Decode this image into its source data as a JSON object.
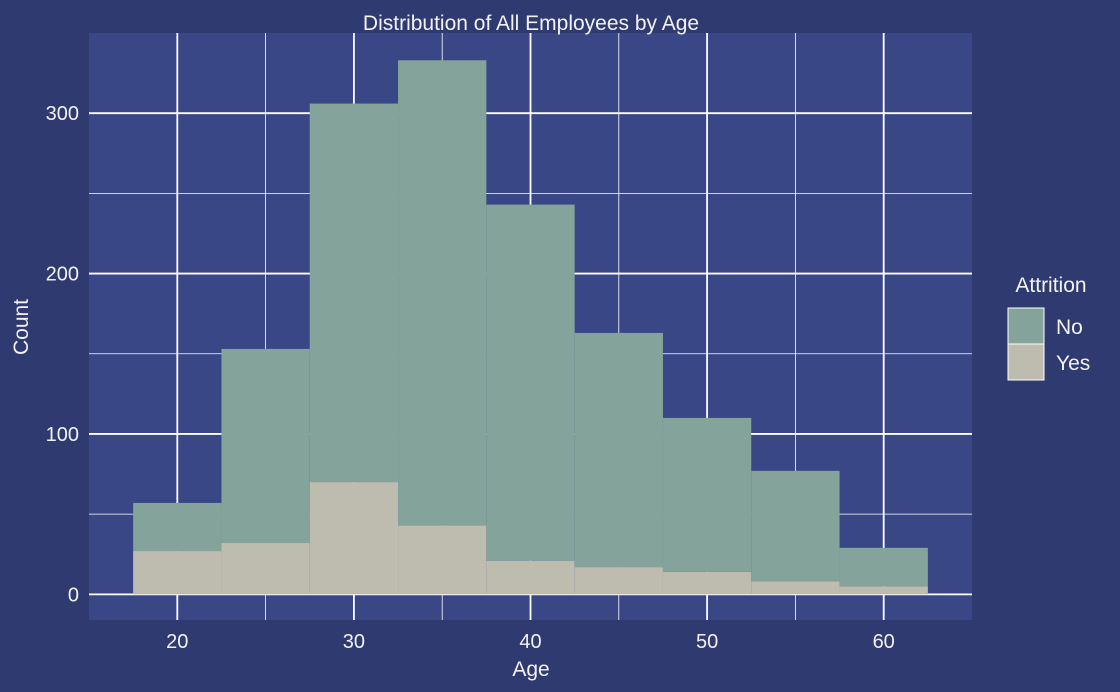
{
  "chart_data": {
    "type": "bar",
    "title": "Distribution of All Employees by Age",
    "xlabel": "Age",
    "ylabel": "Count",
    "xlim": [
      15,
      65
    ],
    "ylim": [
      -16,
      350
    ],
    "xticks": [
      20,
      30,
      40,
      50,
      60
    ],
    "yticks": [
      0,
      100,
      200,
      300
    ],
    "grid": true,
    "stacked": true,
    "legend": {
      "title": "Attrition",
      "placement": "right",
      "entries": [
        "No",
        "Yes"
      ]
    },
    "bins": [
      {
        "x0": 17.5,
        "x1": 22.5
      },
      {
        "x0": 22.5,
        "x1": 27.5
      },
      {
        "x0": 27.5,
        "x1": 32.5
      },
      {
        "x0": 32.5,
        "x1": 37.5
      },
      {
        "x0": 37.5,
        "x1": 42.5
      },
      {
        "x0": 42.5,
        "x1": 47.5
      },
      {
        "x0": 47.5,
        "x1": 52.5
      },
      {
        "x0": 52.5,
        "x1": 57.5
      },
      {
        "x0": 57.5,
        "x1": 62.5
      }
    ],
    "series": [
      {
        "name": "Yes",
        "color": "#bdbcaf",
        "values": [
          27,
          32,
          70,
          43,
          21,
          17,
          14,
          8,
          5
        ]
      },
      {
        "name": "No",
        "color": "#84a39b",
        "values": [
          30,
          121,
          236,
          290,
          222,
          146,
          96,
          69,
          24
        ]
      }
    ],
    "colors": {
      "background": "#2f3a70",
      "panel": "#3a4787",
      "grid": "#ffffff",
      "text": "#f2f2f2"
    }
  }
}
